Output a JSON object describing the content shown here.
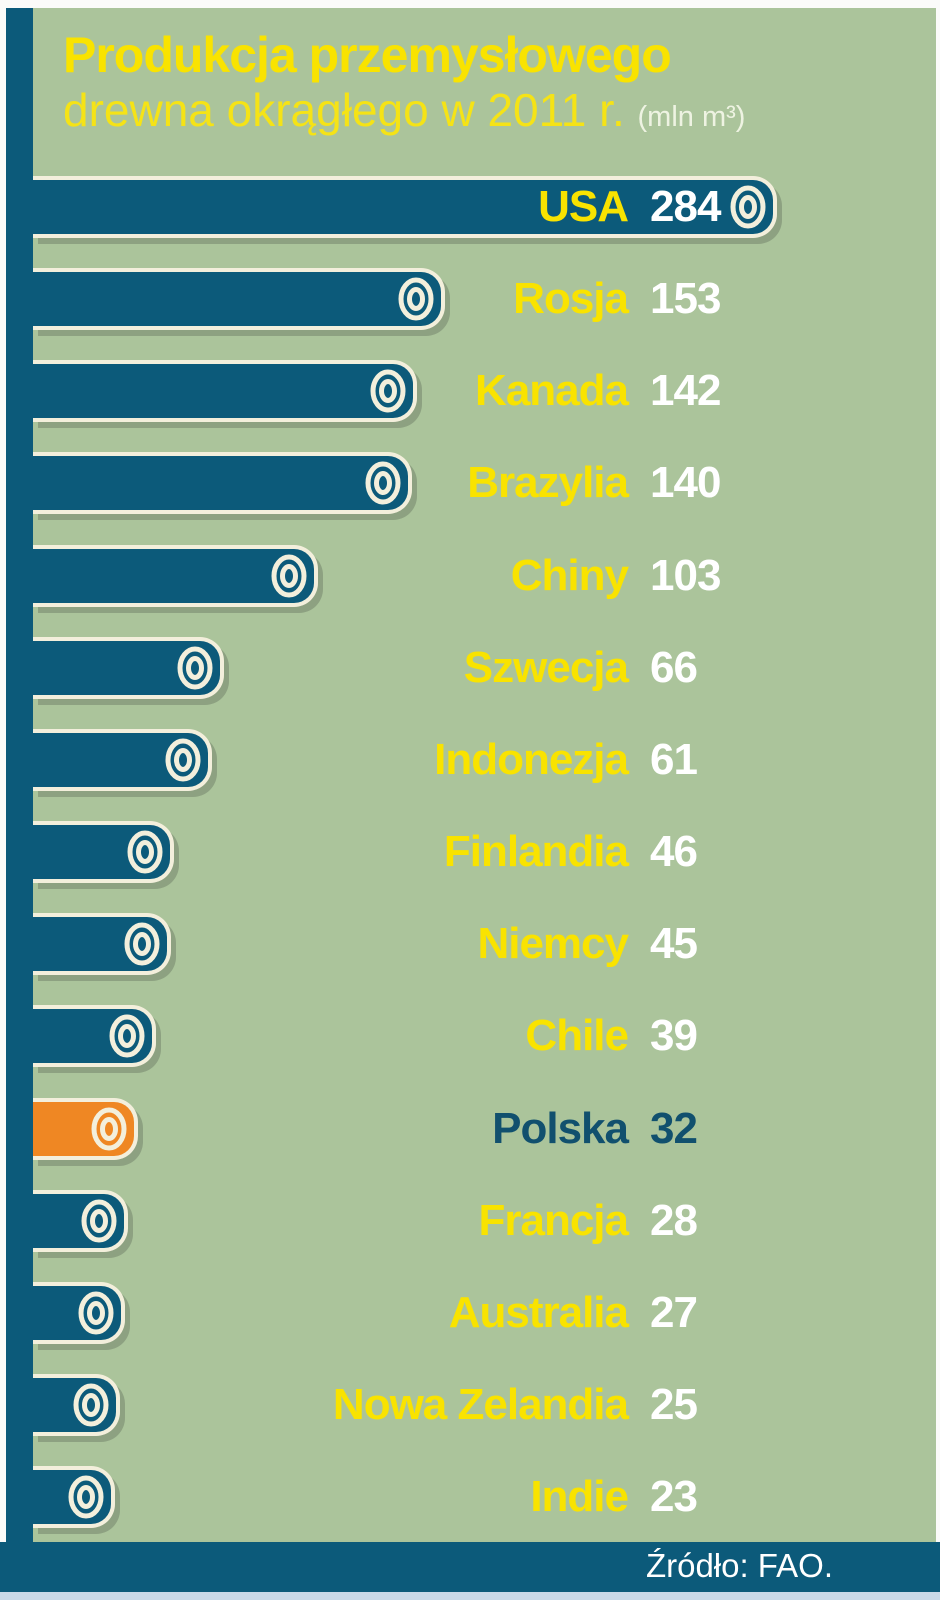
{
  "title": {
    "line1": "Produkcja przemysłowego",
    "line2": "drewna okrągłego w 2011 r.",
    "unit": "(mln m³)"
  },
  "source": {
    "label": "Źródło: FAO."
  },
  "colors": {
    "background_green": "#abc49b",
    "bar_teal": "#0c5a7a",
    "highlight_orange": "#ef8723",
    "outline_cream": "#f3efdc",
    "label_yellow": "#f9e300",
    "value_white": "#ffffff",
    "highlight_text_navy": "#11506e",
    "footer_teal": "#0c5a7a",
    "bottom_strip_blue": "#c9d9e8"
  },
  "chart_data": {
    "type": "bar",
    "orientation": "horizontal",
    "title": "Produkcja przemysłowego drewna okrągłego w 2011 r.",
    "unit": "mln m³",
    "categories": [
      "USA",
      "Rosja",
      "Kanada",
      "Brazylia",
      "Chiny",
      "Szwecja",
      "Indonezja",
      "Finlandia",
      "Niemcy",
      "Chile",
      "Polska",
      "Francja",
      "Australia",
      "Nowa Zelandia",
      "Indie"
    ],
    "values": [
      284,
      153,
      142,
      140,
      103,
      66,
      61,
      46,
      45,
      39,
      32,
      28,
      27,
      25,
      23
    ],
    "highlight_category": "Polska",
    "xlim": [
      0,
      300
    ],
    "legend": "none",
    "grid": "off",
    "source": "Źródło: FAO."
  }
}
